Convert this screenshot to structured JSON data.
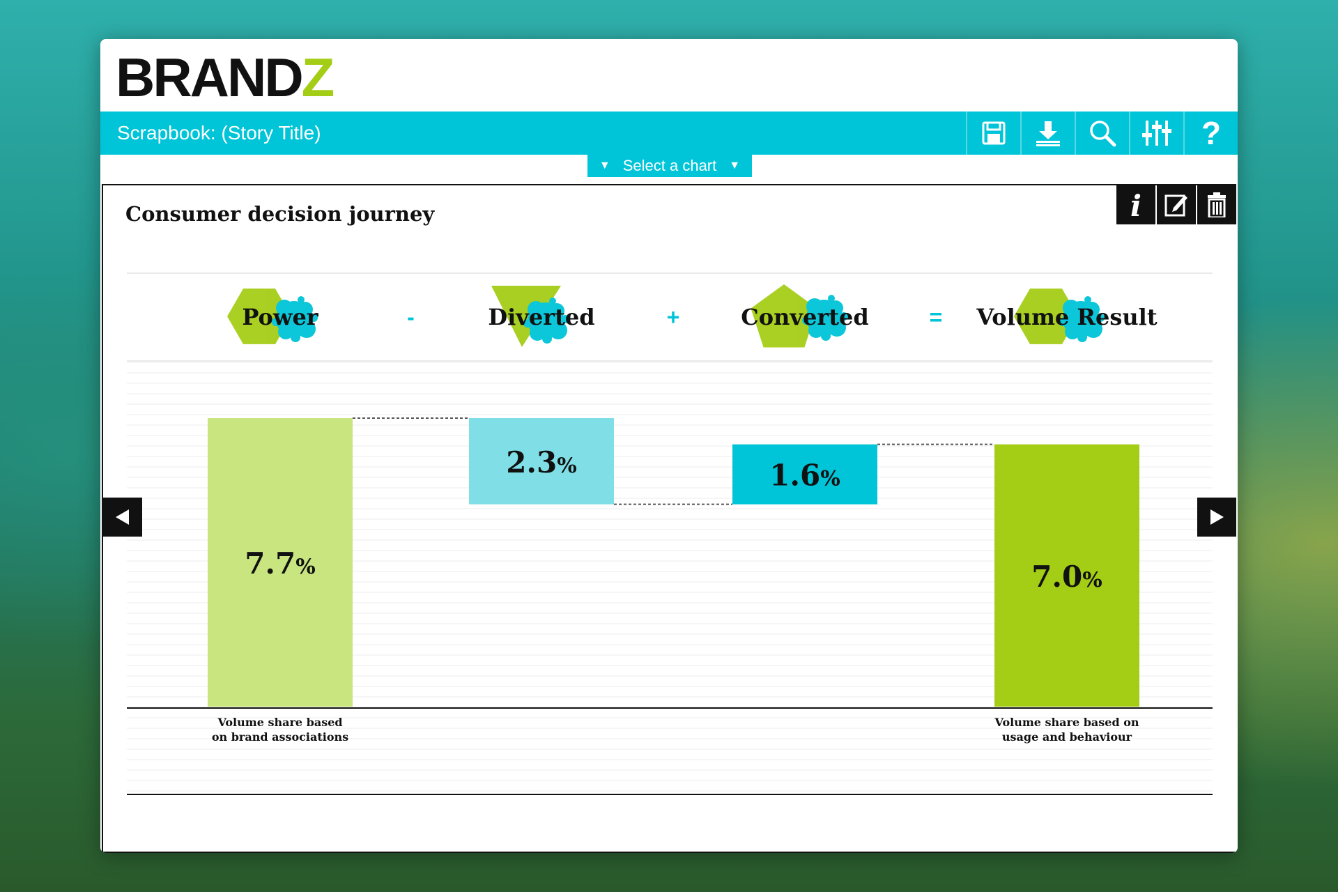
{
  "app": {
    "logo_main": "BRAND",
    "logo_accent": "Z",
    "title": "Scrapbook: (Story Title)",
    "select_chart_label": "Select a chart",
    "toolbar": [
      {
        "name": "save-icon"
      },
      {
        "name": "download-icon"
      },
      {
        "name": "search-icon"
      },
      {
        "name": "settings-sliders-icon"
      },
      {
        "name": "help-icon"
      }
    ],
    "card_actions": [
      {
        "name": "info-icon"
      },
      {
        "name": "edit-icon"
      },
      {
        "name": "trash-icon"
      }
    ]
  },
  "colors": {
    "accent": "#00c4d7",
    "brand_green": "#a4cd16",
    "light_green": "#c8e57f",
    "light_cyan": "#80dfe6",
    "cyan": "#00c4d7"
  },
  "chart_data": {
    "type": "bar",
    "subtype": "waterfall",
    "title": "Consumer decision journey",
    "categories": [
      "Power",
      "Diverted",
      "Converted",
      "Volume Result"
    ],
    "operators": [
      "-",
      "+",
      "="
    ],
    "values": [
      7.7,
      2.3,
      1.6,
      7.0
    ],
    "display": [
      "7.7",
      "2.3",
      "1.6",
      "7.0"
    ],
    "unit": "%",
    "colors": [
      "#c8e57f",
      "#80dfe6",
      "#00c4d7",
      "#a4cd16"
    ],
    "notes": [
      [
        "Volume share based",
        "on brand associations"
      ],
      [],
      [],
      [
        "Volume share based on",
        "usage and behaviour"
      ]
    ]
  }
}
